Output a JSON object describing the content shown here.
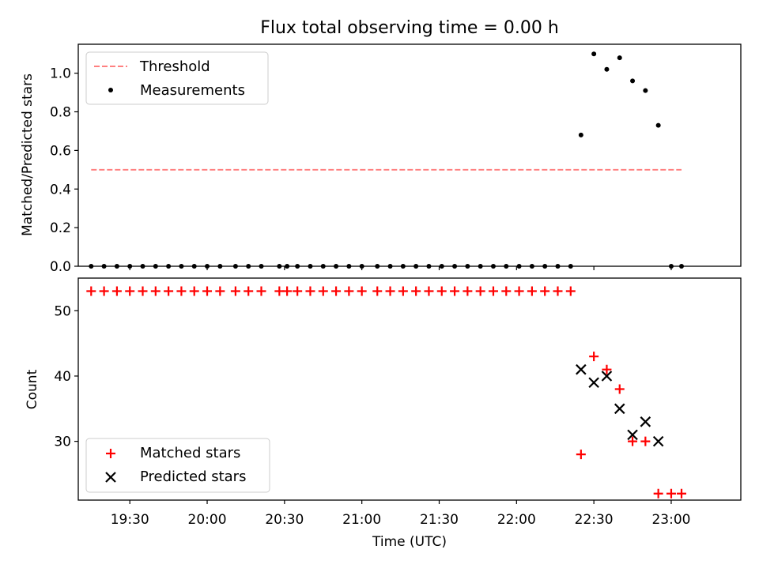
{
  "title": "Flux total observing time = 0.00 h",
  "colors": {
    "threshold": "#ff8080",
    "matched": "#ff0000",
    "predicted": "#000000",
    "measurement": "#000000"
  },
  "chart_data": [
    {
      "type": "scatter",
      "ylabel": "Matched/Predicted stars",
      "ylim": [
        0,
        1.15
      ],
      "yticks": [
        "0.0",
        "0.2",
        "0.4",
        "0.6",
        "0.8",
        "1.0"
      ],
      "xlim": [
        "19:10",
        "23:27"
      ],
      "legend": {
        "placement": "top-left",
        "entries": [
          "Threshold",
          "Measurements"
        ]
      },
      "threshold": {
        "name": "Threshold",
        "value": 0.5,
        "x_range": [
          "19:15",
          "23:04"
        ]
      },
      "series": [
        {
          "name": "Measurements",
          "points": [
            [
              "19:15",
              0
            ],
            [
              "19:20",
              0
            ],
            [
              "19:25",
              0
            ],
            [
              "19:30",
              0
            ],
            [
              "19:35",
              0
            ],
            [
              "19:40",
              0
            ],
            [
              "19:45",
              0
            ],
            [
              "19:50",
              0
            ],
            [
              "19:55",
              0
            ],
            [
              "20:00",
              0
            ],
            [
              "20:05",
              0
            ],
            [
              "20:11",
              0
            ],
            [
              "20:16",
              0
            ],
            [
              "20:21",
              0
            ],
            [
              "20:28",
              0
            ],
            [
              "20:31",
              0
            ],
            [
              "20:35",
              0
            ],
            [
              "20:40",
              0
            ],
            [
              "20:45",
              0
            ],
            [
              "20:50",
              0
            ],
            [
              "20:55",
              0
            ],
            [
              "21:00",
              0
            ],
            [
              "21:06",
              0
            ],
            [
              "21:11",
              0
            ],
            [
              "21:16",
              0
            ],
            [
              "21:21",
              0
            ],
            [
              "21:26",
              0
            ],
            [
              "21:31",
              0
            ],
            [
              "21:36",
              0
            ],
            [
              "21:41",
              0
            ],
            [
              "21:46",
              0
            ],
            [
              "21:51",
              0
            ],
            [
              "21:56",
              0
            ],
            [
              "22:01",
              0
            ],
            [
              "22:06",
              0
            ],
            [
              "22:11",
              0
            ],
            [
              "22:16",
              0
            ],
            [
              "22:21",
              0
            ],
            [
              "22:25",
              0.68
            ],
            [
              "22:30",
              1.1
            ],
            [
              "22:35",
              1.02
            ],
            [
              "22:40",
              1.08
            ],
            [
              "22:45",
              0.96
            ],
            [
              "22:50",
              0.91
            ],
            [
              "22:55",
              0.73
            ],
            [
              "23:00",
              0
            ],
            [
              "23:04",
              0
            ]
          ]
        }
      ]
    },
    {
      "type": "scatter",
      "ylabel": "Count",
      "xlabel": "Time (UTC)",
      "ylim": [
        21,
        55
      ],
      "yticks": [
        "30",
        "40",
        "50"
      ],
      "xlim": [
        "19:10",
        "23:27"
      ],
      "xticks": [
        "19:30",
        "20:00",
        "20:30",
        "21:00",
        "21:30",
        "22:00",
        "22:30",
        "23:00"
      ],
      "legend": {
        "placement": "bottom-left",
        "entries": [
          "Matched stars",
          "Predicted stars"
        ]
      },
      "series": [
        {
          "name": "Matched stars",
          "points": [
            [
              "19:15",
              53
            ],
            [
              "19:20",
              53
            ],
            [
              "19:25",
              53
            ],
            [
              "19:30",
              53
            ],
            [
              "19:35",
              53
            ],
            [
              "19:40",
              53
            ],
            [
              "19:45",
              53
            ],
            [
              "19:50",
              53
            ],
            [
              "19:55",
              53
            ],
            [
              "20:00",
              53
            ],
            [
              "20:05",
              53
            ],
            [
              "20:11",
              53
            ],
            [
              "20:16",
              53
            ],
            [
              "20:21",
              53
            ],
            [
              "20:28",
              53
            ],
            [
              "20:31",
              53
            ],
            [
              "20:35",
              53
            ],
            [
              "20:40",
              53
            ],
            [
              "20:45",
              53
            ],
            [
              "20:50",
              53
            ],
            [
              "20:55",
              53
            ],
            [
              "21:00",
              53
            ],
            [
              "21:06",
              53
            ],
            [
              "21:11",
              53
            ],
            [
              "21:16",
              53
            ],
            [
              "21:21",
              53
            ],
            [
              "21:26",
              53
            ],
            [
              "21:31",
              53
            ],
            [
              "21:36",
              53
            ],
            [
              "21:41",
              53
            ],
            [
              "21:46",
              53
            ],
            [
              "21:51",
              53
            ],
            [
              "21:56",
              53
            ],
            [
              "22:01",
              53
            ],
            [
              "22:06",
              53
            ],
            [
              "22:11",
              53
            ],
            [
              "22:16",
              53
            ],
            [
              "22:21",
              53
            ],
            [
              "22:25",
              28
            ],
            [
              "22:30",
              43
            ],
            [
              "22:35",
              41
            ],
            [
              "22:40",
              38
            ],
            [
              "22:45",
              30
            ],
            [
              "22:50",
              30
            ],
            [
              "22:55",
              22
            ],
            [
              "23:00",
              22
            ],
            [
              "23:04",
              22
            ]
          ]
        },
        {
          "name": "Predicted stars",
          "points": [
            [
              "22:25",
              41
            ],
            [
              "22:30",
              39
            ],
            [
              "22:35",
              40
            ],
            [
              "22:40",
              35
            ],
            [
              "22:45",
              31
            ],
            [
              "22:50",
              33
            ],
            [
              "22:55",
              30
            ]
          ]
        }
      ]
    }
  ]
}
